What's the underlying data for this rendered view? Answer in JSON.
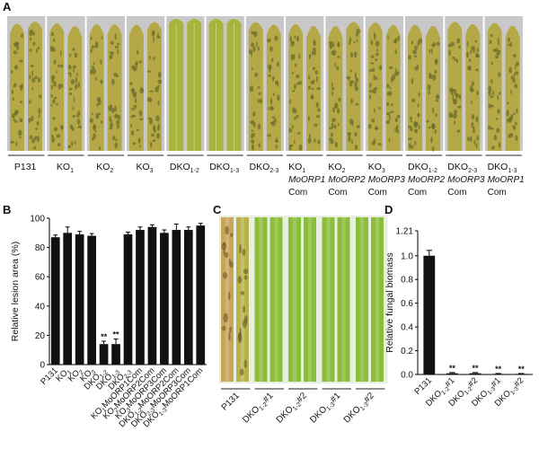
{
  "panels": {
    "a": "A",
    "b": "B",
    "c": "C",
    "d": "D"
  },
  "colors": {
    "leaf_healthy": "#a7b53a",
    "leaf_infected": "#b5a947",
    "lesion": "#6e6f2b",
    "stem_green": "#8cbd3a",
    "bar": "#111111",
    "photo_bg": "#c8c8c8"
  },
  "panel_a": {
    "groups": [
      {
        "label": [
          "P131"
        ],
        "infected": true
      },
      {
        "label": [
          "KO",
          "1"
        ],
        "infected": true
      },
      {
        "label": [
          "KO",
          "2"
        ],
        "infected": true
      },
      {
        "label": [
          "KO",
          "3"
        ],
        "infected": true
      },
      {
        "label": [
          "DKO",
          "1-2"
        ],
        "infected": false
      },
      {
        "label": [
          "DKO",
          "1-3"
        ],
        "infected": false
      },
      {
        "label": [
          "DKO",
          "2-3"
        ],
        "infected": true
      },
      {
        "label": [
          "KO",
          "1"
        ],
        "sub": [
          "MoORP1",
          "Com"
        ],
        "infected": true
      },
      {
        "label": [
          "KO",
          "2"
        ],
        "sub": [
          "MoORP2",
          "Com"
        ],
        "infected": true
      },
      {
        "label": [
          "KO",
          "3"
        ],
        "sub": [
          "MoORP3",
          "Com"
        ],
        "infected": true
      },
      {
        "label": [
          "DKO",
          "1-2"
        ],
        "sub": [
          "MoORP2",
          "Com"
        ],
        "infected": true
      },
      {
        "label": [
          "DKO",
          "2-3"
        ],
        "sub": [
          "MoORP3",
          "Com"
        ],
        "infected": true
      },
      {
        "label": [
          "DKO",
          "1-3"
        ],
        "sub": [
          "MoORP1",
          "Com"
        ],
        "infected": true
      }
    ]
  },
  "panel_c": {
    "groups": [
      {
        "label": [
          "P131",
          ""
        ],
        "infected": true
      },
      {
        "label": [
          "DKO",
          "1-2",
          "#1"
        ],
        "infected": false
      },
      {
        "label": [
          "DKO",
          "1-2",
          "#2"
        ],
        "infected": false
      },
      {
        "label": [
          "DKO",
          "1-3",
          "#1"
        ],
        "infected": false
      },
      {
        "label": [
          "DKO",
          "1-3",
          "#2"
        ],
        "infected": false
      }
    ]
  },
  "chart_data": [
    {
      "type": "bar",
      "panel": "B",
      "ylabel": "Relative lesion area (%)",
      "ylim": [
        0,
        100
      ],
      "yticks": [
        0,
        20,
        40,
        60,
        80,
        100
      ],
      "categories": [
        "P131",
        "KO1",
        "KO2",
        "KO3",
        "DKO1-2",
        "DKO1-3",
        "DKO2-3",
        "KO1MoORP1Com",
        "KO2MoORP2Com",
        "KO3MoORP3Com",
        "DKO1-2MoORP2Com",
        "DKO2-3MoORP3Com",
        "DKO1-3MoORP1Com"
      ],
      "tick_labels": [
        [
          "P131"
        ],
        [
          "KO",
          "1"
        ],
        [
          "KO",
          "2"
        ],
        [
          "KO",
          "3"
        ],
        [
          "DKO",
          "1-2"
        ],
        [
          "DKO",
          "1-3"
        ],
        [
          "DKO",
          "2-3"
        ],
        [
          "KO",
          "1",
          "MoORP1Com"
        ],
        [
          "KO",
          "2",
          "MoORP2Com"
        ],
        [
          "KO",
          "3",
          "MoORP3Com"
        ],
        [
          "DKO",
          "1-2",
          "MoORP2Com"
        ],
        [
          "DKO",
          "2-3",
          "MoORP3Com"
        ],
        [
          "DKO",
          "1-3",
          "MoORP1Com"
        ]
      ],
      "values": [
        87,
        90,
        89,
        88,
        14,
        14,
        89,
        92,
        94,
        90,
        92,
        92,
        95
      ],
      "errors": [
        1.5,
        4,
        2,
        1.5,
        2,
        3.5,
        1.5,
        2,
        1.5,
        2,
        4,
        2,
        1.5
      ],
      "annotations": [
        "",
        "",
        "",
        "",
        "**",
        "**",
        "",
        "",
        "",
        "",
        "",
        "",
        ""
      ],
      "grid": false
    },
    {
      "type": "bar",
      "panel": "D",
      "ylabel": "Relative fungal biomass",
      "ylim": [
        0,
        1.21
      ],
      "yticks": [
        "0.0",
        "0.2",
        "0.4",
        "0.6",
        "0.8",
        "1.0",
        "1.21"
      ],
      "categories": [
        "P131",
        "DKO1-2#1",
        "DKO1-2#2",
        "DKO1-3#1",
        "DKO1-3#2"
      ],
      "tick_labels": [
        [
          "P131"
        ],
        [
          "DKO",
          "1-2",
          "#1"
        ],
        [
          "DKO",
          "1-2",
          "#2"
        ],
        [
          "DKO",
          "1-3",
          "#1"
        ],
        [
          "DKO",
          "1-3",
          "#2"
        ]
      ],
      "values": [
        1.0,
        0.01,
        0.01,
        0.005,
        0.005
      ],
      "errors": [
        0.045,
        0.006,
        0.006,
        0.003,
        0.003
      ],
      "annotations": [
        "",
        "**",
        "**",
        "**",
        "**"
      ],
      "grid": false
    }
  ]
}
